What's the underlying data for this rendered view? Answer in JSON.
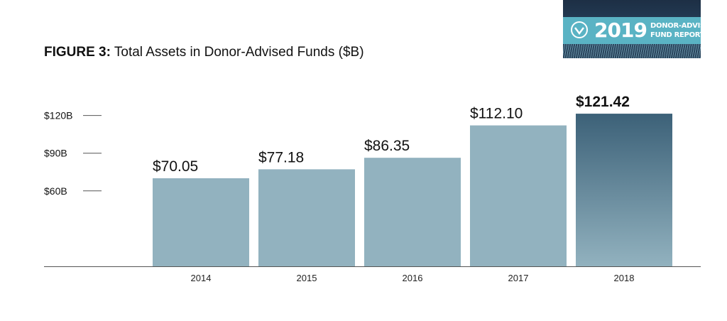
{
  "title": {
    "figure_label": "FIGURE 3:",
    "text": "Total Assets in Donor-Advised Funds ($B)"
  },
  "badge": {
    "year": "2019",
    "line1": "DONOR-ADVISED",
    "line2": "FUND REPORT",
    "icon": "check-circle-logo-icon"
  },
  "colors": {
    "bar": "#92b2bf",
    "highlight_top": "#3c6178",
    "highlight_bottom": "#92b2bf",
    "axis": "#555555"
  },
  "chart_data": {
    "type": "bar",
    "categories": [
      "2014",
      "2015",
      "2016",
      "2017",
      "2018"
    ],
    "values": [
      70.05,
      77.18,
      86.35,
      112.1,
      121.42
    ],
    "value_labels": [
      "$70.05",
      "$77.18",
      "$86.35",
      "$112.10",
      "$121.42"
    ],
    "highlighted": "2018",
    "y_ticks": [
      {
        "value": 60,
        "label": "$60B"
      },
      {
        "value": 90,
        "label": "$90B"
      },
      {
        "value": 120,
        "label": "$120B"
      }
    ],
    "ylim": [
      0,
      123
    ],
    "grid": false,
    "title": "Total Assets in Donor-Advised Funds ($B)",
    "xlabel": "",
    "ylabel": ""
  }
}
